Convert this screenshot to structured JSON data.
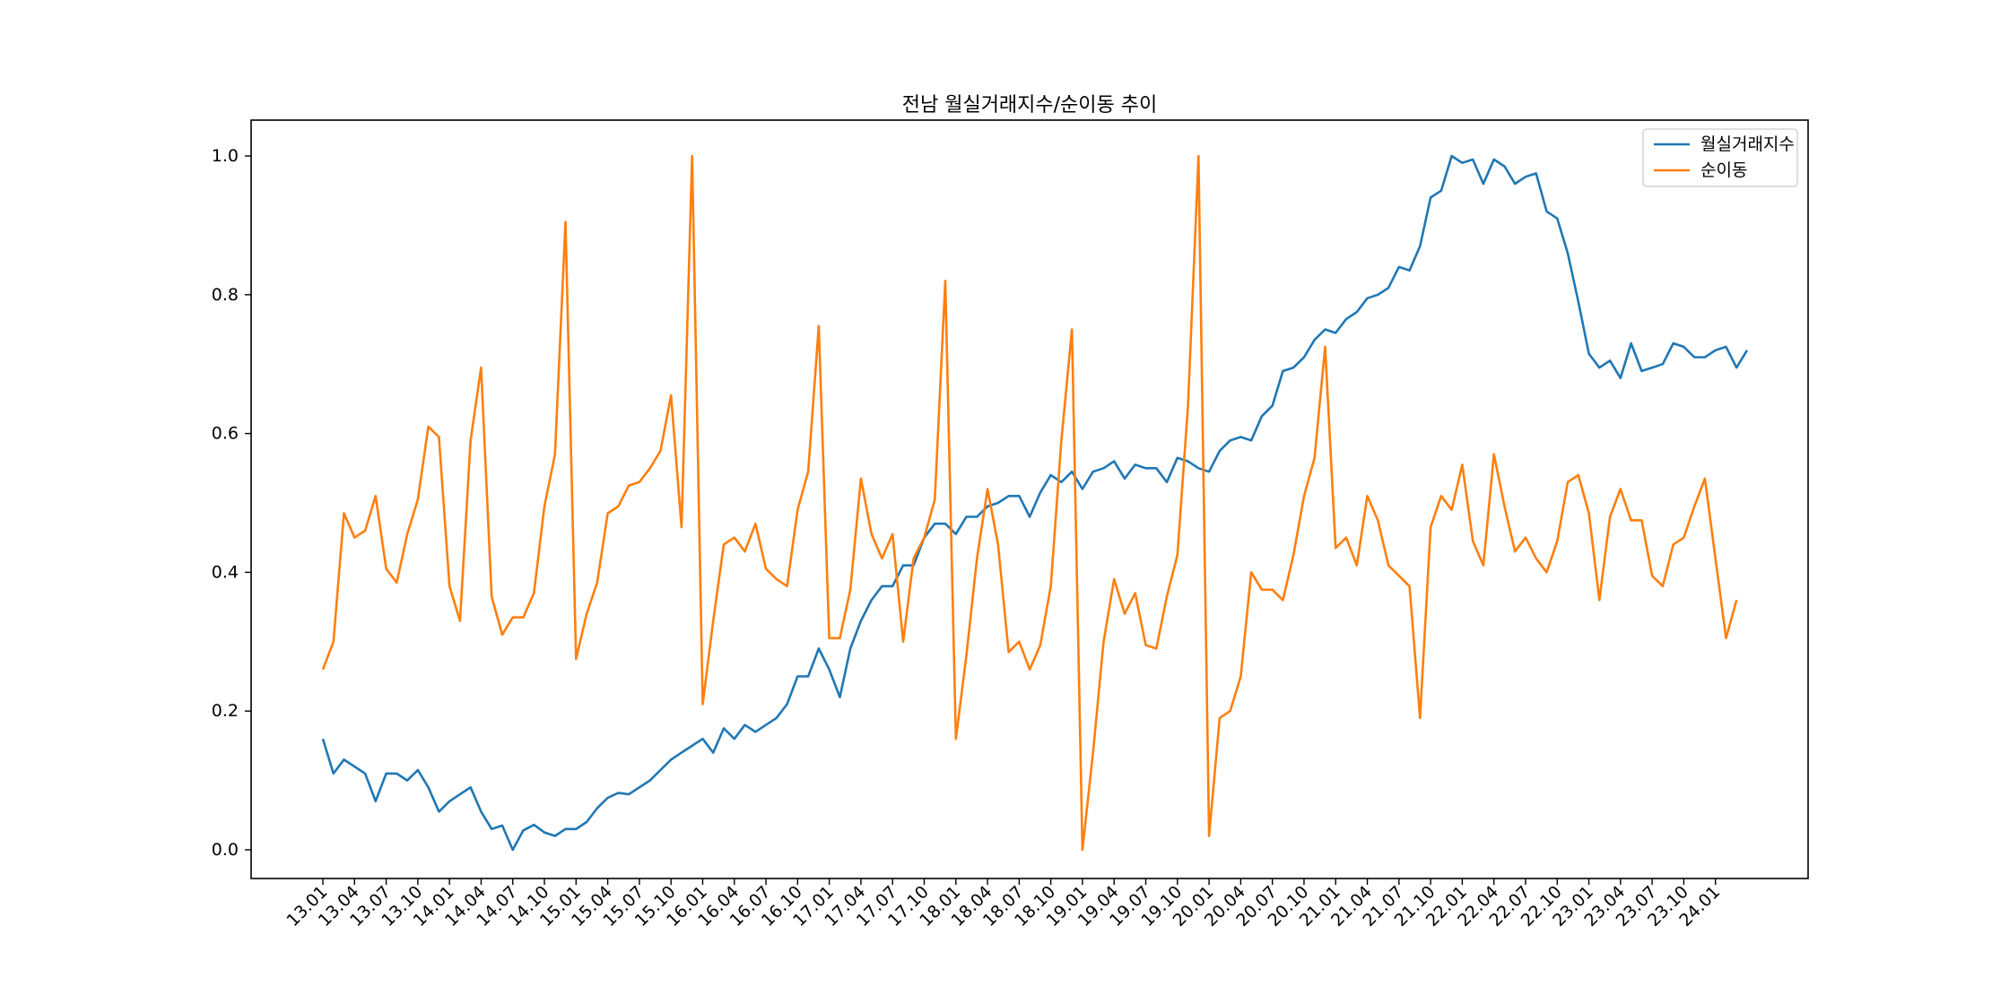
{
  "chart_data": {
    "type": "line",
    "title": "전남 월실거래지수/순이동 추이",
    "xlabel": "",
    "ylabel": "",
    "ylim": [
      -0.05,
      1.05
    ],
    "yticks": [
      "0.0",
      "0.2",
      "0.4",
      "0.6",
      "0.8",
      "1.0"
    ],
    "xtick_labels": [
      "13.01",
      "13.04",
      "13.07",
      "13.10",
      "14.01",
      "14.04",
      "14.07",
      "14.10",
      "15.01",
      "15.04",
      "15.07",
      "15.10",
      "16.01",
      "16.04",
      "16.07",
      "16.10",
      "17.01",
      "17.04",
      "17.07",
      "17.10",
      "18.01",
      "18.04",
      "18.07",
      "18.10",
      "19.01",
      "19.04",
      "19.07",
      "19.10",
      "20.01",
      "20.04",
      "20.07",
      "20.10",
      "21.01",
      "21.04",
      "21.07",
      "21.10",
      "22.01",
      "22.04",
      "22.07",
      "22.10",
      "23.01",
      "23.04",
      "23.07",
      "23.10",
      "24.01"
    ],
    "x_start": "13.01",
    "grid": false,
    "legend_position": "upper right",
    "series": [
      {
        "name": "월실거래지수",
        "color": "#1f77b4",
        "values": [
          0.16,
          0.11,
          0.13,
          0.12,
          0.11,
          0.07,
          0.11,
          0.11,
          0.1,
          0.115,
          0.09,
          0.055,
          0.07,
          0.08,
          0.09,
          0.055,
          0.03,
          0.035,
          0.0,
          0.028,
          0.036,
          0.025,
          0.02,
          0.03,
          0.03,
          0.04,
          0.06,
          0.075,
          0.082,
          0.08,
          0.09,
          0.1,
          0.115,
          0.13,
          0.14,
          0.15,
          0.16,
          0.14,
          0.175,
          0.16,
          0.18,
          0.17,
          0.18,
          0.19,
          0.21,
          0.25,
          0.25,
          0.29,
          0.26,
          0.22,
          0.29,
          0.33,
          0.36,
          0.38,
          0.38,
          0.41,
          0.41,
          0.45,
          0.47,
          0.47,
          0.455,
          0.48,
          0.48,
          0.495,
          0.5,
          0.51,
          0.51,
          0.48,
          0.515,
          0.54,
          0.53,
          0.545,
          0.52,
          0.545,
          0.55,
          0.56,
          0.535,
          0.555,
          0.55,
          0.55,
          0.53,
          0.565,
          0.56,
          0.55,
          0.545,
          0.575,
          0.59,
          0.595,
          0.59,
          0.625,
          0.64,
          0.69,
          0.695,
          0.71,
          0.735,
          0.75,
          0.745,
          0.765,
          0.775,
          0.795,
          0.8,
          0.81,
          0.84,
          0.835,
          0.87,
          0.94,
          0.95,
          1.0,
          0.99,
          0.995,
          0.96,
          0.995,
          0.985,
          0.96,
          0.97,
          0.975,
          0.92,
          0.91,
          0.86,
          0.79,
          0.715,
          0.695,
          0.705,
          0.68,
          0.73,
          0.69,
          0.695,
          0.7,
          0.73,
          0.725,
          0.71,
          0.71,
          0.72,
          0.725,
          0.695,
          0.72
        ]
      },
      {
        "name": "순이동",
        "color": "#ff7f0e",
        "values": [
          0.26,
          0.3,
          0.485,
          0.45,
          0.46,
          0.51,
          0.405,
          0.385,
          0.455,
          0.505,
          0.61,
          0.595,
          0.38,
          0.33,
          0.59,
          0.695,
          0.365,
          0.31,
          0.335,
          0.335,
          0.37,
          0.495,
          0.57,
          0.905,
          0.275,
          0.34,
          0.385,
          0.485,
          0.495,
          0.525,
          0.53,
          0.55,
          0.575,
          0.655,
          0.465,
          1.0,
          0.21,
          0.33,
          0.44,
          0.45,
          0.43,
          0.47,
          0.405,
          0.39,
          0.38,
          0.49,
          0.545,
          0.755,
          0.305,
          0.305,
          0.375,
          0.535,
          0.455,
          0.42,
          0.455,
          0.3,
          0.42,
          0.45,
          0.505,
          0.82,
          0.16,
          0.28,
          0.42,
          0.52,
          0.44,
          0.285,
          0.3,
          0.26,
          0.295,
          0.38,
          0.59,
          0.75,
          0.0,
          0.14,
          0.3,
          0.39,
          0.34,
          0.37,
          0.295,
          0.29,
          0.365,
          0.425,
          0.64,
          1.0,
          0.02,
          0.19,
          0.2,
          0.25,
          0.4,
          0.375,
          0.375,
          0.36,
          0.425,
          0.51,
          0.565,
          0.725,
          0.435,
          0.45,
          0.41,
          0.51,
          0.475,
          0.41,
          0.395,
          0.38,
          0.19,
          0.465,
          0.51,
          0.49,
          0.555,
          0.445,
          0.41,
          0.57,
          0.495,
          0.43,
          0.45,
          0.42,
          0.4,
          0.445,
          0.53,
          0.54,
          0.485,
          0.36,
          0.48,
          0.52,
          0.475,
          0.475,
          0.395,
          0.38,
          0.44,
          0.45,
          0.495,
          0.535,
          0.42,
          0.305,
          0.36
        ]
      }
    ]
  }
}
